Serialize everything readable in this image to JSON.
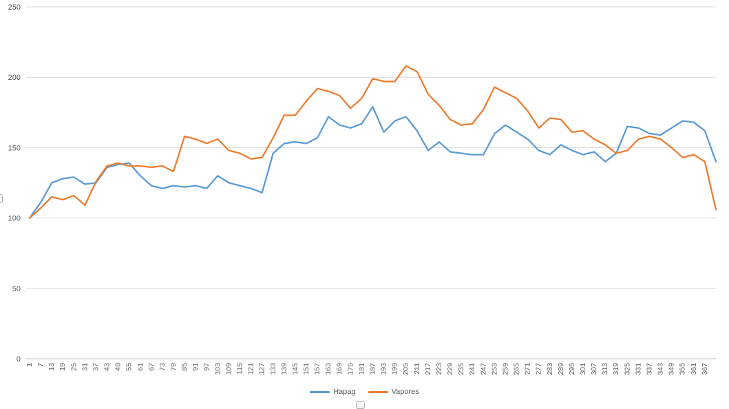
{
  "chart_data": {
    "type": "line",
    "title": "",
    "xlabel": "",
    "ylabel": "",
    "ylim": [
      0,
      250
    ],
    "y_ticks": [
      0,
      50,
      100,
      150,
      200,
      250
    ],
    "grid": true,
    "legend_position": "bottom",
    "x_tick_labels": [
      "1",
      "7",
      "13",
      "19",
      "25",
      "31",
      "37",
      "43",
      "49",
      "55",
      "61",
      "67",
      "73",
      "79",
      "85",
      "91",
      "97",
      "103",
      "109",
      "115",
      "121",
      "127",
      "133",
      "139",
      "145",
      "151",
      "157",
      "163",
      "169",
      "175",
      "181",
      "187",
      "193",
      "199",
      "205",
      "211",
      "217",
      "223",
      "229",
      "235",
      "241",
      "247",
      "253",
      "259",
      "265",
      "271",
      "277",
      "283",
      "289",
      "295",
      "301",
      "307",
      "313",
      "319",
      "325",
      "331",
      "337",
      "343",
      "349",
      "355",
      "361",
      "367"
    ],
    "sample_x": [
      1,
      7,
      13,
      19,
      25,
      31,
      37,
      43,
      49,
      55,
      61,
      67,
      73,
      79,
      85,
      91,
      97,
      103,
      109,
      115,
      121,
      127,
      133,
      139,
      145,
      151,
      157,
      163,
      169,
      175,
      181,
      187,
      193,
      199,
      205,
      211,
      217,
      223,
      229,
      235,
      241,
      247,
      253,
      259,
      265,
      271,
      277,
      283,
      289,
      295,
      301,
      307,
      313,
      319,
      325,
      331,
      337,
      343,
      349,
      355,
      361,
      367,
      373
    ],
    "series": [
      {
        "name": "Hapag",
        "color": "#5B9BD5",
        "values": [
          100,
          111,
          125,
          128,
          129,
          124,
          125,
          136,
          138,
          139,
          130,
          123,
          121,
          123,
          122,
          123,
          121,
          130,
          125,
          123,
          121,
          118,
          146,
          153,
          154,
          153,
          157,
          172,
          166,
          164,
          167,
          179,
          161,
          169,
          172,
          162,
          148,
          154,
          147,
          146,
          145,
          145,
          160,
          166,
          161,
          156,
          148,
          145,
          152,
          148,
          145,
          147,
          140,
          146,
          165,
          164,
          160,
          159,
          164,
          169,
          168,
          162,
          140
        ]
      },
      {
        "name": "Vapores",
        "color": "#ED7D31",
        "values": [
          100,
          107,
          115,
          113,
          116,
          109,
          126,
          137,
          139,
          137,
          137,
          136,
          137,
          133,
          158,
          156,
          153,
          156,
          148,
          146,
          142,
          143,
          157,
          173,
          173,
          183,
          192,
          190,
          187,
          178,
          185,
          199,
          197,
          197,
          208,
          204,
          188,
          180,
          170,
          166,
          167,
          177,
          193,
          189,
          185,
          176,
          164,
          171,
          170,
          161,
          162,
          156,
          152,
          146,
          148,
          156,
          158,
          156,
          150,
          143,
          145,
          140,
          106
        ]
      }
    ]
  },
  "legend": {
    "items": [
      "Hapag",
      "Vapores"
    ]
  },
  "colors": {
    "background": "#FFFFFF",
    "gridline": "#D9D9D9",
    "axis_line": "#BFBFBF",
    "axis_text": "#595959",
    "hapag": "#5B9BD5",
    "vapores": "#ED7D31"
  }
}
